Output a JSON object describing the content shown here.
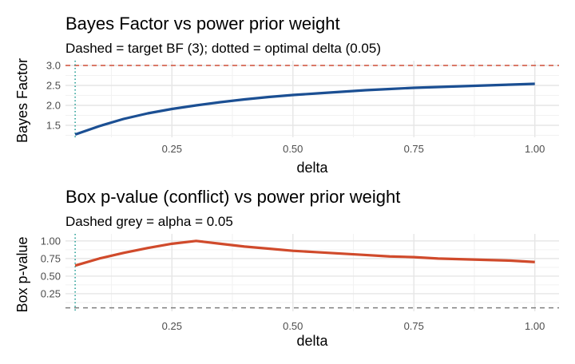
{
  "chart_data": [
    {
      "type": "line",
      "title": "Bayes Factor vs power prior weight",
      "subtitle": "Dashed = target BF (3); dotted = optimal delta (0.05)",
      "xlabel": "delta",
      "ylabel": "Bayes Factor",
      "xlim": [
        0.03,
        1.05
      ],
      "ylim": [
        1.2,
        3.12
      ],
      "x_ticks": [
        0.25,
        0.5,
        0.75,
        1.0
      ],
      "x_tick_labels": [
        "0.25",
        "0.50",
        "0.75",
        "1.00"
      ],
      "y_ticks": [
        1.5,
        2.0,
        2.5,
        3.0
      ],
      "y_tick_labels": [
        "1.5",
        "2.0",
        "2.5",
        "3.0"
      ],
      "grid": true,
      "legend": "none",
      "series": [
        {
          "color": "#1b4f93",
          "x": [
            0.05,
            0.1,
            0.15,
            0.2,
            0.25,
            0.3,
            0.35,
            0.4,
            0.45,
            0.5,
            0.55,
            0.6,
            0.65,
            0.7,
            0.75,
            0.8,
            0.85,
            0.9,
            0.95,
            1.0
          ],
          "y": [
            1.27,
            1.48,
            1.66,
            1.8,
            1.91,
            2.0,
            2.08,
            2.15,
            2.21,
            2.26,
            2.3,
            2.34,
            2.38,
            2.41,
            2.44,
            2.46,
            2.48,
            2.5,
            2.52,
            2.54
          ]
        }
      ],
      "hlines": [
        {
          "y": 3.0,
          "color": "#d1513b",
          "style": "dashed"
        }
      ],
      "vlines": [
        {
          "x": 0.05,
          "color": "#2aa198",
          "style": "dotted"
        }
      ]
    },
    {
      "type": "line",
      "title": "Box p-value (conflict) vs power prior weight",
      "subtitle": "Dashed grey = alpha = 0.05",
      "xlabel": "delta",
      "ylabel": "Box p-value",
      "xlim": [
        0.03,
        1.05
      ],
      "ylim": [
        0.0,
        1.1
      ],
      "x_ticks": [
        0.25,
        0.5,
        0.75,
        1.0
      ],
      "x_tick_labels": [
        "0.25",
        "0.50",
        "0.75",
        "1.00"
      ],
      "y_ticks": [
        0.25,
        0.5,
        0.75,
        1.0
      ],
      "y_tick_labels": [
        "0.25",
        "0.50",
        "0.75",
        "1.00"
      ],
      "grid": true,
      "legend": "none",
      "series": [
        {
          "color": "#d04a2b",
          "x": [
            0.05,
            0.1,
            0.15,
            0.2,
            0.25,
            0.3,
            0.35,
            0.4,
            0.45,
            0.5,
            0.55,
            0.6,
            0.65,
            0.7,
            0.75,
            0.8,
            0.85,
            0.9,
            0.95,
            1.0
          ],
          "y": [
            0.65,
            0.75,
            0.83,
            0.9,
            0.96,
            1.0,
            0.96,
            0.92,
            0.89,
            0.86,
            0.84,
            0.82,
            0.8,
            0.78,
            0.77,
            0.75,
            0.74,
            0.73,
            0.72,
            0.7
          ]
        }
      ],
      "hlines": [
        {
          "y": 0.05,
          "color": "#7f7f7f",
          "style": "dashed"
        }
      ],
      "vlines": [
        {
          "x": 0.05,
          "color": "#2aa198",
          "style": "dotted"
        }
      ]
    }
  ]
}
